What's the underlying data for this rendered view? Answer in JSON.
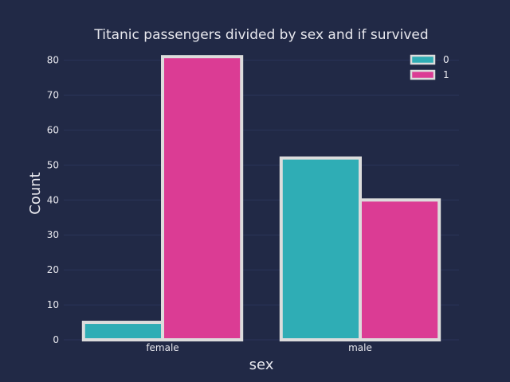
{
  "chart_data": {
    "type": "bar",
    "title": "Titanic passengers divided by sex and if survived",
    "xlabel": "sex",
    "ylabel": "Count",
    "categories": [
      "female",
      "male"
    ],
    "series": [
      {
        "name": "0",
        "values": [
          5,
          52
        ],
        "color": "#2fadb5"
      },
      {
        "name": "1",
        "values": [
          81,
          40
        ],
        "color": "#db3c94"
      }
    ],
    "ylim": [
      0,
      84
    ],
    "yticks": [
      0,
      10,
      20,
      30,
      40,
      50,
      60,
      70,
      80
    ],
    "grid": true,
    "legend_position": "top-right"
  },
  "colors": {
    "background": "#212946",
    "grid": "#2a3459",
    "bar_edge": "#dcdcdc",
    "text": "#e8e8ee"
  }
}
